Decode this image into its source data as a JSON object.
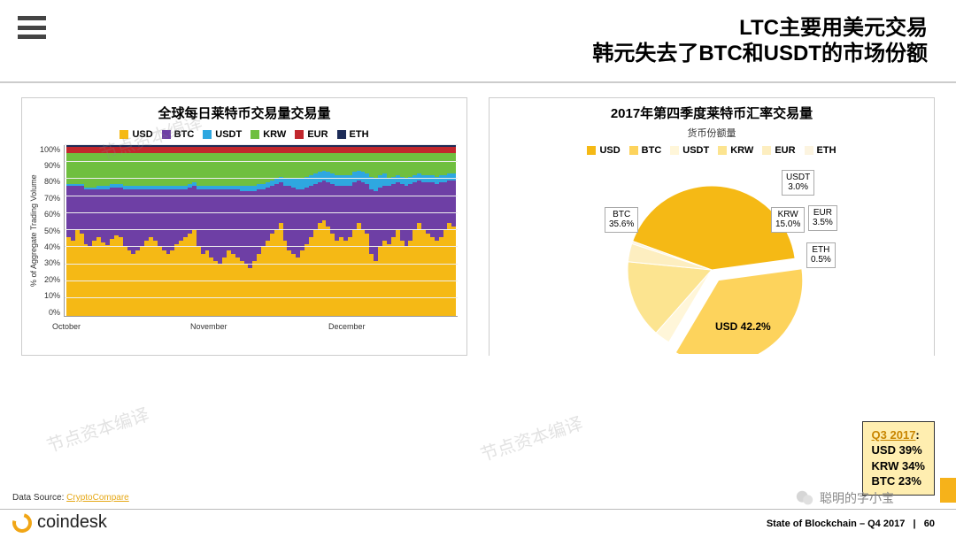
{
  "header": {
    "title_line1": "LTC主要用美元交易",
    "title_line2": "韩元失去了BTC和USDT的市场份额"
  },
  "colors": {
    "USD": "#f5b915",
    "BTC": "#6e3fa5",
    "USDT": "#2ea7e0",
    "KRW": "#6fbf3f",
    "EUR": "#c1272d",
    "ETH": "#1c2b57"
  },
  "left_chart": {
    "title": "全球每日莱特币交易量交易量",
    "y_label": "% of Aggregate Trading Volume",
    "type": "stacked_bar_100",
    "ylim": [
      0,
      100
    ],
    "ytick_step": 10,
    "x_months": [
      "October",
      "November",
      "December"
    ],
    "series_order": [
      "USD",
      "BTC",
      "USDT",
      "KRW",
      "EUR",
      "ETH"
    ],
    "legend": [
      "USD",
      "BTC",
      "USDT",
      "KRW",
      "EUR",
      "ETH"
    ],
    "bars": [
      [
        46,
        30,
        1,
        18,
        4,
        1
      ],
      [
        44,
        32,
        1,
        18,
        4,
        1
      ],
      [
        50,
        26,
        1,
        18,
        4,
        1
      ],
      [
        48,
        28,
        1,
        18,
        4,
        1
      ],
      [
        42,
        32,
        1,
        20,
        4,
        1
      ],
      [
        40,
        34,
        1,
        20,
        4,
        1
      ],
      [
        44,
        30,
        1,
        20,
        4,
        1
      ],
      [
        46,
        28,
        2,
        19,
        4,
        1
      ],
      [
        43,
        31,
        2,
        19,
        4,
        1
      ],
      [
        41,
        33,
        2,
        19,
        4,
        1
      ],
      [
        45,
        30,
        2,
        18,
        4,
        1
      ],
      [
        47,
        28,
        2,
        18,
        4,
        1
      ],
      [
        46,
        29,
        2,
        18,
        4,
        1
      ],
      [
        40,
        34,
        2,
        19,
        4,
        1
      ],
      [
        38,
        36,
        2,
        19,
        4,
        1
      ],
      [
        36,
        38,
        2,
        19,
        4,
        1
      ],
      [
        38,
        36,
        2,
        19,
        4,
        1
      ],
      [
        40,
        34,
        2,
        19,
        4,
        1
      ],
      [
        44,
        30,
        2,
        19,
        4,
        1
      ],
      [
        46,
        28,
        2,
        19,
        4,
        1
      ],
      [
        44,
        30,
        2,
        19,
        4,
        1
      ],
      [
        40,
        34,
        2,
        19,
        4,
        1
      ],
      [
        38,
        36,
        2,
        19,
        4,
        1
      ],
      [
        36,
        38,
        2,
        19,
        4,
        1
      ],
      [
        38,
        36,
        2,
        19,
        4,
        1
      ],
      [
        42,
        32,
        2,
        19,
        4,
        1
      ],
      [
        44,
        30,
        2,
        19,
        4,
        1
      ],
      [
        46,
        28,
        2,
        19,
        4,
        1
      ],
      [
        48,
        27,
        2,
        18,
        4,
        1
      ],
      [
        50,
        26,
        2,
        17,
        4,
        1
      ],
      [
        40,
        34,
        2,
        19,
        4,
        1
      ],
      [
        36,
        38,
        2,
        19,
        4,
        1
      ],
      [
        38,
        36,
        2,
        19,
        4,
        1
      ],
      [
        34,
        40,
        2,
        19,
        4,
        1
      ],
      [
        32,
        42,
        2,
        19,
        4,
        1
      ],
      [
        30,
        44,
        2,
        19,
        4,
        1
      ],
      [
        34,
        40,
        2,
        19,
        4,
        1
      ],
      [
        38,
        36,
        2,
        19,
        4,
        1
      ],
      [
        36,
        38,
        2,
        19,
        4,
        1
      ],
      [
        34,
        40,
        2,
        19,
        4,
        1
      ],
      [
        32,
        41,
        3,
        19,
        4,
        1
      ],
      [
        30,
        43,
        3,
        19,
        4,
        1
      ],
      [
        28,
        45,
        3,
        19,
        4,
        1
      ],
      [
        32,
        41,
        3,
        19,
        4,
        1
      ],
      [
        36,
        38,
        3,
        18,
        4,
        1
      ],
      [
        40,
        34,
        3,
        18,
        4,
        1
      ],
      [
        44,
        31,
        3,
        17,
        4,
        1
      ],
      [
        48,
        28,
        3,
        16,
        4,
        1
      ],
      [
        50,
        27,
        3,
        15,
        4,
        1
      ],
      [
        54,
        24,
        3,
        14,
        4,
        1
      ],
      [
        44,
        32,
        4,
        15,
        4,
        1
      ],
      [
        38,
        38,
        4,
        15,
        4,
        1
      ],
      [
        36,
        39,
        5,
        15,
        4,
        1
      ],
      [
        34,
        40,
        6,
        15,
        4,
        1
      ],
      [
        38,
        36,
        6,
        15,
        4,
        1
      ],
      [
        42,
        33,
        6,
        14,
        4,
        1
      ],
      [
        46,
        30,
        6,
        13,
        4,
        1
      ],
      [
        50,
        27,
        6,
        12,
        4,
        1
      ],
      [
        54,
        24,
        6,
        11,
        4,
        1
      ],
      [
        56,
        23,
        6,
        10,
        4,
        1
      ],
      [
        52,
        26,
        6,
        11,
        4,
        1
      ],
      [
        48,
        29,
        6,
        12,
        4,
        1
      ],
      [
        44,
        32,
        6,
        13,
        4,
        1
      ],
      [
        46,
        30,
        6,
        13,
        4,
        1
      ],
      [
        44,
        32,
        6,
        13,
        4,
        1
      ],
      [
        46,
        30,
        6,
        13,
        4,
        1
      ],
      [
        50,
        28,
        6,
        11,
        4,
        1
      ],
      [
        54,
        25,
        6,
        10,
        4,
        1
      ],
      [
        50,
        28,
        6,
        11,
        4,
        1
      ],
      [
        48,
        29,
        6,
        12,
        4,
        1
      ],
      [
        36,
        38,
        7,
        14,
        4,
        1
      ],
      [
        32,
        41,
        7,
        15,
        4,
        1
      ],
      [
        40,
        35,
        7,
        13,
        4,
        1
      ],
      [
        44,
        32,
        7,
        12,
        4,
        1
      ],
      [
        42,
        34,
        4,
        15,
        4,
        1
      ],
      [
        46,
        31,
        4,
        14,
        4,
        1
      ],
      [
        50,
        28,
        4,
        13,
        4,
        1
      ],
      [
        44,
        33,
        4,
        14,
        4,
        1
      ],
      [
        40,
        36,
        4,
        15,
        4,
        1
      ],
      [
        44,
        33,
        4,
        14,
        4,
        1
      ],
      [
        50,
        28,
        4,
        13,
        4,
        1
      ],
      [
        54,
        25,
        4,
        12,
        4,
        1
      ],
      [
        50,
        28,
        4,
        13,
        4,
        1
      ],
      [
        48,
        30,
        4,
        13,
        4,
        1
      ],
      [
        46,
        32,
        4,
        13,
        4,
        1
      ],
      [
        44,
        33,
        4,
        14,
        4,
        1
      ],
      [
        46,
        32,
        4,
        13,
        4,
        1
      ],
      [
        50,
        28,
        4,
        13,
        4,
        1
      ],
      [
        54,
        25,
        4,
        12,
        4,
        1
      ],
      [
        52,
        27,
        4,
        12,
        4,
        1
      ]
    ]
  },
  "right_chart": {
    "title": "2017年第四季度莱特币汇率交易量",
    "subtitle": "货币份额量",
    "type": "pie",
    "legend": [
      "USD",
      "BTC",
      "USDT",
      "KRW",
      "EUR",
      "ETH"
    ],
    "slices": [
      {
        "label": "USD",
        "value": 42.2,
        "display": "USD 42.2%",
        "color": "#f5b915",
        "explode": 0
      },
      {
        "label": "BTC",
        "value": 35.6,
        "display": "BTC\n35.6%",
        "color": "#fdd35c",
        "explode": 14
      },
      {
        "label": "USDT",
        "value": 3.0,
        "display": "USDT\n3.0%",
        "color": "#fff6d9",
        "explode": 0
      },
      {
        "label": "KRW",
        "value": 15.0,
        "display": "KRW\n15.0%",
        "color": "#fce490",
        "explode": 0
      },
      {
        "label": "EUR",
        "value": 3.5,
        "display": "EUR\n3.5%",
        "color": "#fdeec0",
        "explode": 0
      },
      {
        "label": "ETH",
        "value": 0.5,
        "display": "ETH\n0.5%",
        "color": "#fcf4e0",
        "explode": 0
      }
    ],
    "radius": 95
  },
  "q3_box": {
    "heading": "Q3 2017",
    "lines": [
      "USD 39%",
      "KRW 34%",
      "BTC 23%"
    ]
  },
  "footer": {
    "data_source_label": "Data Source:",
    "data_source_link": "CryptoCompare",
    "brand": "coindesk",
    "page_label": "State of Blockchain – Q4 2017",
    "page_sep": "|",
    "page_num": "60"
  },
  "watermarks": [
    "节点资本编译",
    "节点资本编译",
    "节点资本编译"
  ],
  "wechat_label": "聪明的字小宝"
}
